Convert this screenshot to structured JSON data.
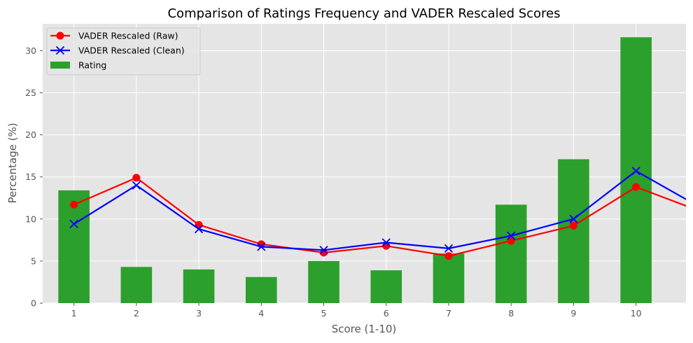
{
  "chart_data": {
    "type": "bar",
    "title": "Comparison of Ratings Frequency and VADER Rescaled Scores",
    "xlabel": "Score (1-10)",
    "ylabel": "Percentage (%)",
    "categories": [
      "1",
      "2",
      "3",
      "4",
      "5",
      "6",
      "7",
      "8",
      "9",
      "10"
    ],
    "ylim": [
      0,
      33.2
    ],
    "yticks": [
      "0",
      "5",
      "10",
      "15",
      "20",
      "25",
      "30"
    ],
    "grid": true,
    "legend_position": "top-left",
    "series": [
      {
        "name": "Rating",
        "kind": "bar",
        "color": "#2ca02c",
        "values": [
          13.4,
          4.3,
          4.0,
          3.1,
          5.0,
          3.9,
          5.9,
          11.7,
          17.1,
          31.6
        ]
      },
      {
        "name": "VADER Rescaled (Raw)",
        "kind": "line",
        "marker": "circle",
        "color": "#ff0000",
        "values": [
          11.7,
          14.9,
          9.3,
          7.0,
          6.0,
          6.8,
          5.6,
          7.4,
          9.2,
          13.8
        ],
        "continues_right_to": 11.0
      },
      {
        "name": "VADER Rescaled (Clean)",
        "kind": "line",
        "marker": "x",
        "color": "#0000ff",
        "values": [
          9.4,
          14.0,
          8.8,
          6.7,
          6.3,
          7.2,
          6.5,
          8.0,
          10.0,
          15.7
        ],
        "continues_right_to": 11.5
      }
    ]
  }
}
